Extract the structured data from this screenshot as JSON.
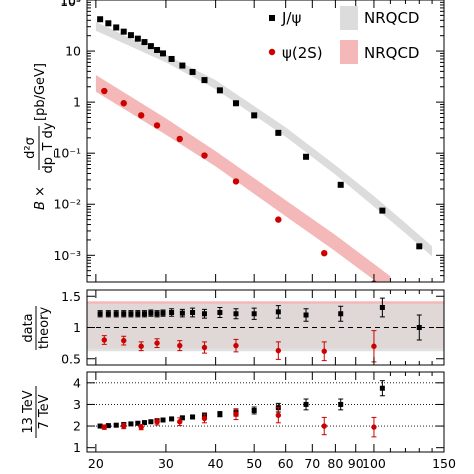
{
  "chart_data": [
    {
      "type": "scatter",
      "panel": "cross-section",
      "ylabel_prefix": "B ×",
      "ylabel_frac_num": "d²σ",
      "ylabel_frac_den": "dp_T dy",
      "ylabel_units": "[pb/GeV]",
      "y_scale": "log",
      "ylim": [
        0.0003,
        100
      ],
      "xlim": [
        19,
        150
      ],
      "x_scale": "log",
      "yticks": [
        0.001,
        0.01,
        0.1,
        1,
        10,
        100
      ],
      "ytick_labels": [
        "10⁻³",
        "10⁻²",
        "10⁻¹",
        "1",
        "10",
        "10²"
      ],
      "partial_top_label": "10³",
      "legend": {
        "position": "top-right",
        "entries": [
          {
            "label": "J/ψ",
            "marker": "square",
            "color": "#000000"
          },
          {
            "label": "NRQCD",
            "band_color": "#dcdcdc"
          },
          {
            "label": "ψ(2S)",
            "marker": "circle",
            "color": "#cc0000"
          },
          {
            "label": "NRQCD",
            "band_color": "#f5b8b8"
          }
        ]
      },
      "series": [
        {
          "name": "J/ψ",
          "x": [
            20.5,
            21.5,
            22.5,
            23.5,
            24.5,
            25.5,
            26.5,
            27.5,
            28.5,
            29.5,
            31,
            33,
            35,
            37.5,
            41,
            45,
            50,
            57.5,
            67.5,
            82.5,
            105,
            130
          ],
          "y": [
            42,
            35,
            29,
            24,
            20.5,
            17.5,
            15,
            12.5,
            10.5,
            9,
            7,
            5.2,
            3.9,
            2.7,
            1.7,
            0.95,
            0.55,
            0.25,
            0.085,
            0.024,
            0.0075,
            0.0015
          ]
        },
        {
          "name": "ψ(2S)",
          "x": [
            21,
            23.5,
            26,
            28.5,
            32.5,
            37.5,
            45,
            57.5,
            75,
            100
          ],
          "y": [
            1.65,
            0.95,
            0.55,
            0.35,
            0.19,
            0.09,
            0.028,
            0.005,
            0.0011,
            0.00028
          ]
        }
      ],
      "bands": [
        {
          "name": "NRQCD J/ψ",
          "x": [
            20,
            30,
            40,
            60,
            80,
            100,
            120,
            140
          ],
          "lo": [
            25,
            6,
            1.8,
            0.21,
            0.038,
            0.009,
            0.0027,
            0.00095
          ],
          "hi": [
            37,
            8.5,
            2.7,
            0.32,
            0.058,
            0.0145,
            0.0043,
            0.0015
          ]
        },
        {
          "name": "NRQCD ψ(2S)",
          "x": [
            20,
            30,
            40,
            60,
            80,
            100,
            110
          ],
          "lo": [
            1.6,
            0.23,
            0.055,
            0.0058,
            0.0012,
            0.00033,
            0.00019
          ],
          "hi": [
            3.4,
            0.48,
            0.11,
            0.012,
            0.0025,
            0.00068,
            0.00039
          ]
        }
      ]
    },
    {
      "type": "scatter",
      "panel": "ratio-data-theory",
      "ylabel_num": "data",
      "ylabel_den": "theory",
      "ylim": [
        0.4,
        1.6
      ],
      "yticks": [
        0.5,
        1,
        1.5
      ],
      "ytick_labels": [
        "0.5",
        "1",
        "1.5"
      ],
      "reference_line": 1,
      "series": [
        {
          "name": "J/ψ",
          "x": [
            20.5,
            21.5,
            22.5,
            23.5,
            24.5,
            25.5,
            26.5,
            27.5,
            28.5,
            29.5,
            31,
            33,
            35,
            37.5,
            41,
            45,
            50,
            57.5,
            67.5,
            82.5,
            105,
            130
          ],
          "y": [
            1.22,
            1.22,
            1.22,
            1.22,
            1.22,
            1.22,
            1.22,
            1.23,
            1.22,
            1.23,
            1.24,
            1.23,
            1.24,
            1.22,
            1.24,
            1.22,
            1.22,
            1.25,
            1.2,
            1.22,
            1.32,
            1.0
          ],
          "err": [
            0.05,
            0.05,
            0.05,
            0.05,
            0.05,
            0.05,
            0.05,
            0.05,
            0.05,
            0.05,
            0.06,
            0.06,
            0.07,
            0.07,
            0.08,
            0.08,
            0.09,
            0.1,
            0.1,
            0.12,
            0.15,
            0.2
          ]
        },
        {
          "name": "ψ(2S)",
          "x": [
            21,
            23.5,
            26,
            28.5,
            32.5,
            37.5,
            45,
            57.5,
            75,
            100
          ],
          "y": [
            0.8,
            0.79,
            0.7,
            0.75,
            0.71,
            0.68,
            0.71,
            0.63,
            0.62,
            0.7
          ],
          "err": [
            0.07,
            0.07,
            0.07,
            0.07,
            0.08,
            0.09,
            0.1,
            0.14,
            0.15,
            0.25
          ]
        }
      ],
      "bands": [
        {
          "name": "NRQCD J/ψ",
          "lo": 0.62,
          "hi": 1.38
        },
        {
          "name": "NRQCD ψ(2S)",
          "lo": 0.66,
          "hi": 1.42
        }
      ]
    },
    {
      "type": "scatter",
      "panel": "energy-ratio",
      "ylabel_num": "13 TeV",
      "ylabel_den": "7 TeV",
      "ylim": [
        0.8,
        4.5
      ],
      "yticks": [
        1,
        2,
        3,
        4
      ],
      "ytick_labels": [
        "1",
        "2",
        "3",
        "4"
      ],
      "xticks": [
        20,
        30,
        40,
        50,
        60,
        70,
        80,
        90,
        100,
        150
      ],
      "xtick_labels": [
        "20",
        "30",
        "40",
        "50",
        "60",
        "70",
        "80",
        "90",
        "100",
        "150"
      ],
      "dotted_gridlines": [
        2,
        3,
        4
      ],
      "series": [
        {
          "name": "J/ψ",
          "x": [
            20.5,
            21.5,
            22.5,
            23.5,
            24.5,
            25.5,
            26.5,
            27.5,
            28.5,
            29.5,
            31,
            33,
            35,
            37.5,
            41,
            45,
            50,
            57.5,
            67.5,
            82.5,
            105
          ],
          "y": [
            2.0,
            2.02,
            2.04,
            2.07,
            2.1,
            2.13,
            2.16,
            2.2,
            2.24,
            2.28,
            2.33,
            2.38,
            2.42,
            2.5,
            2.55,
            2.6,
            2.72,
            2.85,
            3.0,
            3.0,
            3.75
          ],
          "err": [
            0.05,
            0.05,
            0.05,
            0.05,
            0.05,
            0.05,
            0.05,
            0.05,
            0.05,
            0.06,
            0.06,
            0.07,
            0.08,
            0.1,
            0.12,
            0.14,
            0.16,
            0.2,
            0.25,
            0.25,
            0.35
          ]
        },
        {
          "name": "ψ(2S)",
          "x": [
            21,
            23.5,
            26,
            28.5,
            32.5,
            37.5,
            45,
            57.5,
            75,
            100
          ],
          "y": [
            1.95,
            2.0,
            1.95,
            2.2,
            2.2,
            2.35,
            2.55,
            2.5,
            2.0,
            1.95
          ],
          "err": [
            0.1,
            0.12,
            0.12,
            0.15,
            0.18,
            0.2,
            0.25,
            0.35,
            0.4,
            0.45
          ]
        }
      ]
    }
  ]
}
